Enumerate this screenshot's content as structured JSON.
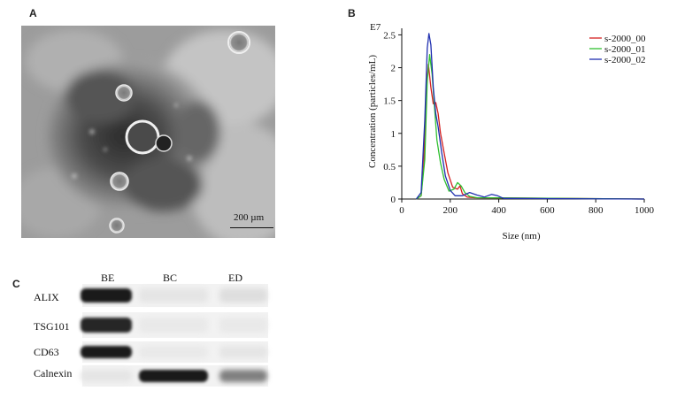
{
  "panels": {
    "a": {
      "letter": "A",
      "scale_bar_label": "200 µm"
    },
    "b": {
      "letter": "B"
    },
    "c": {
      "letter": "C",
      "lanes": [
        "BE",
        "BC",
        "ED"
      ],
      "rows": [
        {
          "label": "ALIX",
          "bands": [
            0.95,
            0.05,
            0.08
          ]
        },
        {
          "label": "TSG101",
          "bands": [
            0.9,
            0.03,
            0.03
          ]
        },
        {
          "label": "CD63",
          "bands": [
            0.95,
            0.03,
            0.05
          ]
        },
        {
          "label": "Calnexin",
          "bands": [
            0.05,
            0.95,
            0.5
          ]
        }
      ]
    }
  },
  "chart_data": {
    "type": "line",
    "xlabel": "Size (nm)",
    "ylabel": "Concentration (particles/mL)",
    "y_multiplier_label": "E7",
    "xlim": [
      0,
      1000
    ],
    "ylim": [
      0,
      2.6
    ],
    "xticks": [
      0,
      200,
      400,
      600,
      800,
      1000
    ],
    "yticks": [
      0,
      0.5,
      1,
      1.5,
      2,
      2.5
    ],
    "yticklabels": [
      "0",
      "0.5",
      "1",
      "1.5",
      "2",
      "2.5"
    ],
    "legend_position": "top-right",
    "series": [
      {
        "name": "s-2000_00",
        "color": "#d42020",
        "points": [
          [
            60,
            0
          ],
          [
            80,
            0.05
          ],
          [
            90,
            0.5
          ],
          [
            100,
            1.6
          ],
          [
            110,
            2.05
          ],
          [
            120,
            1.7
          ],
          [
            130,
            1.45
          ],
          [
            140,
            1.47
          ],
          [
            150,
            1.3
          ],
          [
            160,
            1.0
          ],
          [
            175,
            0.7
          ],
          [
            190,
            0.4
          ],
          [
            210,
            0.18
          ],
          [
            230,
            0.15
          ],
          [
            240,
            0.2
          ],
          [
            250,
            0.08
          ],
          [
            270,
            0.03
          ],
          [
            300,
            0.02
          ],
          [
            1000,
            0
          ]
        ]
      },
      {
        "name": "s-2000_01",
        "color": "#30c030",
        "points": [
          [
            60,
            0
          ],
          [
            80,
            0.05
          ],
          [
            95,
            0.6
          ],
          [
            105,
            1.8
          ],
          [
            115,
            2.2
          ],
          [
            125,
            1.9
          ],
          [
            135,
            1.4
          ],
          [
            145,
            0.9
          ],
          [
            160,
            0.55
          ],
          [
            175,
            0.3
          ],
          [
            195,
            0.12
          ],
          [
            215,
            0.15
          ],
          [
            230,
            0.25
          ],
          [
            245,
            0.2
          ],
          [
            260,
            0.1
          ],
          [
            280,
            0.04
          ],
          [
            310,
            0.02
          ],
          [
            1000,
            0
          ]
        ]
      },
      {
        "name": "s-2000_02",
        "color": "#2030b0",
        "points": [
          [
            60,
            0
          ],
          [
            80,
            0.1
          ],
          [
            95,
            1.2
          ],
          [
            105,
            2.3
          ],
          [
            112,
            2.52
          ],
          [
            120,
            2.35
          ],
          [
            130,
            1.7
          ],
          [
            140,
            1.3
          ],
          [
            150,
            1.1
          ],
          [
            165,
            0.7
          ],
          [
            180,
            0.35
          ],
          [
            200,
            0.13
          ],
          [
            220,
            0.05
          ],
          [
            250,
            0.05
          ],
          [
            280,
            0.1
          ],
          [
            310,
            0.06
          ],
          [
            340,
            0.03
          ],
          [
            370,
            0.07
          ],
          [
            395,
            0.05
          ],
          [
            420,
            0.01
          ],
          [
            1000,
            0
          ]
        ]
      }
    ]
  }
}
